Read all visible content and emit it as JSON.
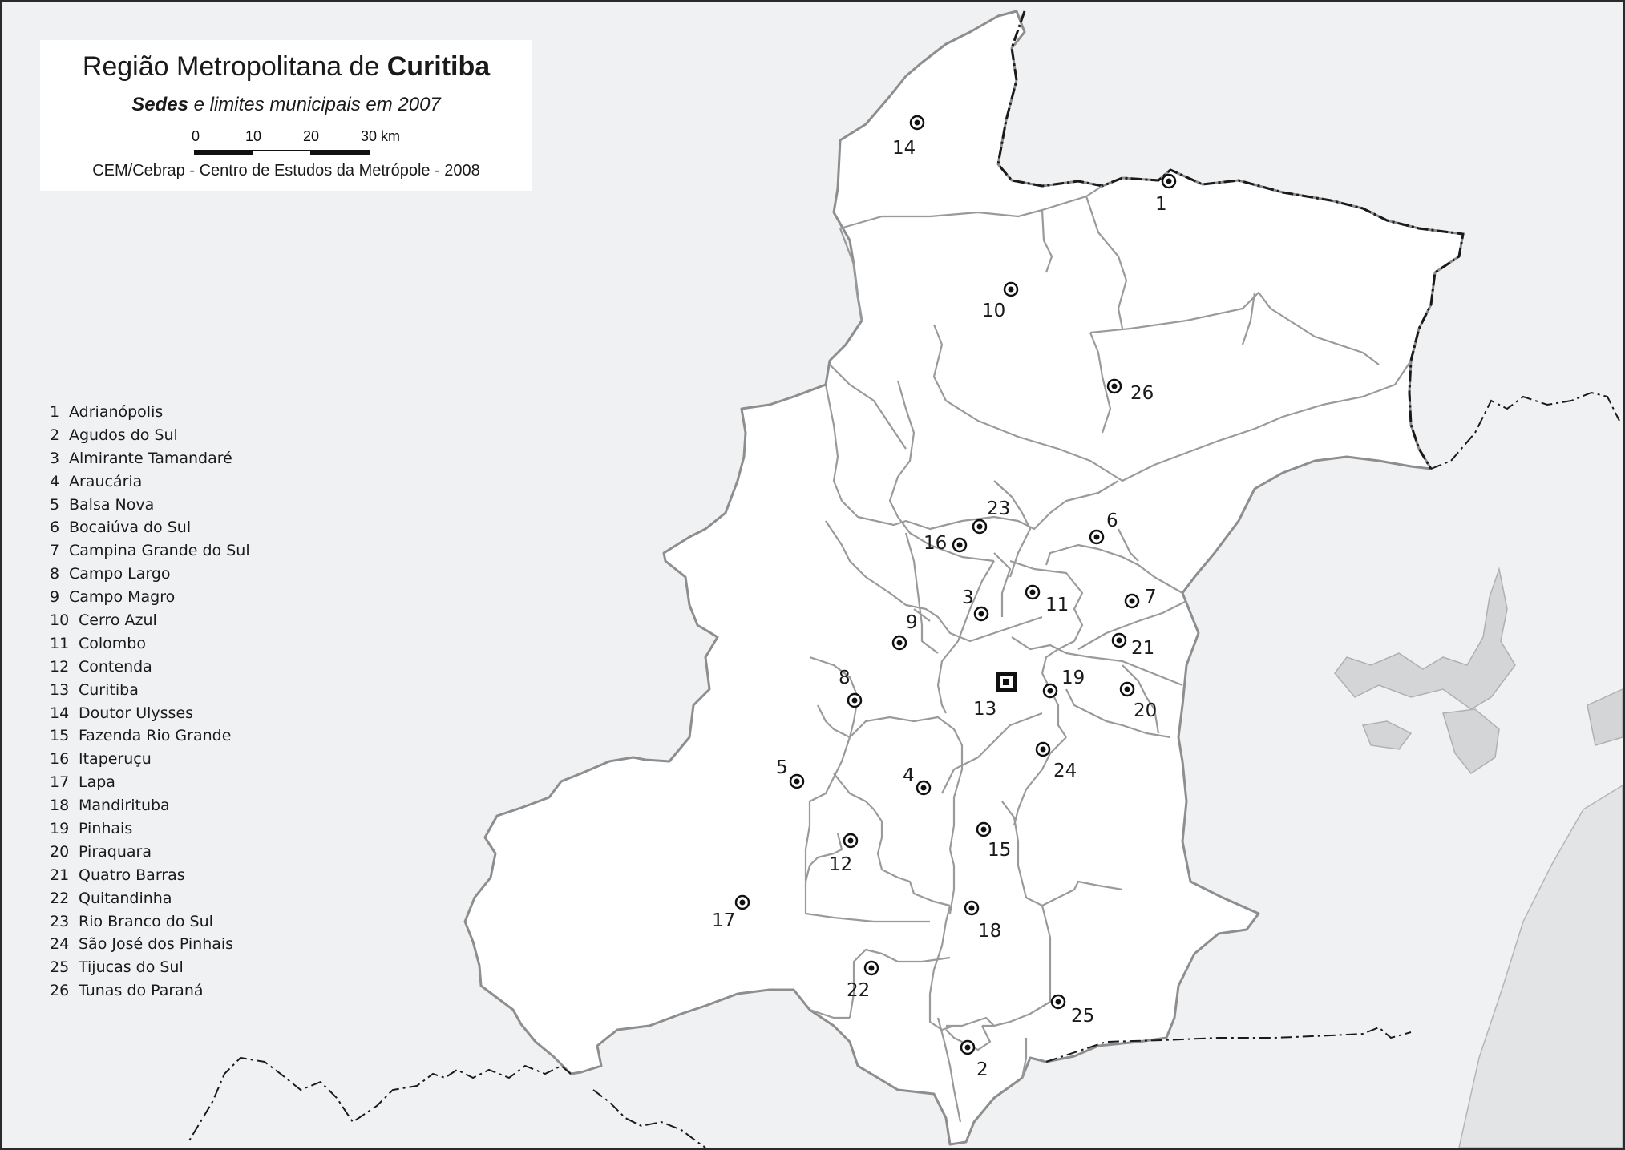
{
  "title": {
    "main_prefix": "Região Metropolitana de",
    "main_bold": "Curitiba",
    "sub_bold": "Sedes",
    "sub_rest": "e limites municipais em 2007"
  },
  "scale_bar": {
    "ticks": [
      "0",
      "10",
      "20",
      "30"
    ],
    "unit": "km"
  },
  "credit": "CEM/Cebrap - Centro de Estudos da Metrópole - 2008",
  "legend": [
    {
      "num": "1",
      "name": "Adrianópolis"
    },
    {
      "num": "2",
      "name": "Agudos do Sul"
    },
    {
      "num": "3",
      "name": "Almirante Tamandaré"
    },
    {
      "num": "4",
      "name": "Araucária"
    },
    {
      "num": "5",
      "name": "Balsa Nova"
    },
    {
      "num": "6",
      "name": "Bocaiúva do Sul"
    },
    {
      "num": "7",
      "name": "Campina Grande do Sul"
    },
    {
      "num": "8",
      "name": "Campo Largo"
    },
    {
      "num": "9",
      "name": "Campo Magro"
    },
    {
      "num": "10",
      "name": "Cerro Azul"
    },
    {
      "num": "11",
      "name": "Colombo"
    },
    {
      "num": "12",
      "name": "Contenda"
    },
    {
      "num": "13",
      "name": "Curitiba"
    },
    {
      "num": "14",
      "name": "Doutor Ulysses"
    },
    {
      "num": "15",
      "name": "Fazenda Rio Grande"
    },
    {
      "num": "16",
      "name": "Itaperuçu"
    },
    {
      "num": "17",
      "name": "Lapa"
    },
    {
      "num": "18",
      "name": "Mandirituba"
    },
    {
      "num": "19",
      "name": "Pinhais"
    },
    {
      "num": "20",
      "name": "Piraquara"
    },
    {
      "num": "21",
      "name": "Quatro Barras"
    },
    {
      "num": "22",
      "name": "Quitandinha"
    },
    {
      "num": "23",
      "name": "Rio Branco do Sul"
    },
    {
      "num": "24",
      "name": "São José dos Pinhais"
    },
    {
      "num": "25",
      "name": "Tijucas do Sul"
    },
    {
      "num": "26",
      "name": "Tunas do Paraná"
    }
  ],
  "map_labels": [
    "1",
    "2",
    "3",
    "4",
    "5",
    "6",
    "7",
    "8",
    "9",
    "10",
    "11",
    "12",
    "13",
    "14",
    "15",
    "16",
    "17",
    "18",
    "19",
    "20",
    "21",
    "22",
    "23",
    "24",
    "25",
    "26"
  ],
  "colors": {
    "background": "#f0f1f2",
    "region_fill": "#ffffff",
    "border_line": "#9a9a9a",
    "state_border": "#1a1a1a",
    "ocean": "#e4e5e7",
    "water": "#d3d4d6"
  }
}
